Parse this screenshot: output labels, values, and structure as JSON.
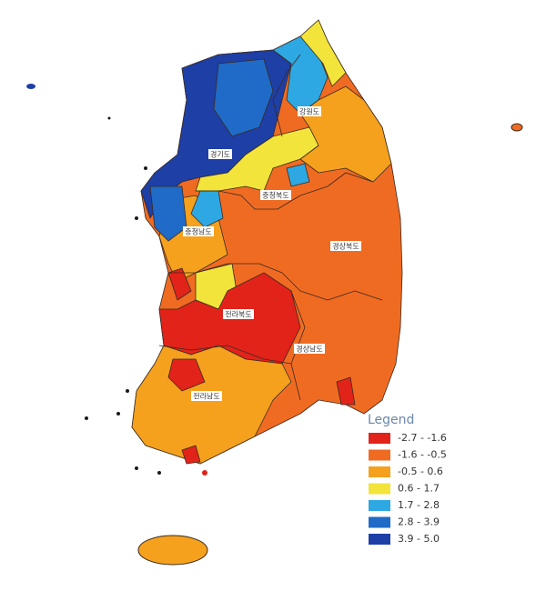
{
  "legend": {
    "title": "Legend",
    "items": [
      {
        "label": "-2.7 - -1.6",
        "color": "#e2231a"
      },
      {
        "label": "-1.6 - -0.5",
        "color": "#f06b22"
      },
      {
        "label": "-0.5 - 0.6",
        "color": "#f5a11d"
      },
      {
        "label": "0.6 - 1.7",
        "color": "#f2e43a"
      },
      {
        "label": "1.7 - 2.8",
        "color": "#2ea8e2"
      },
      {
        "label": "2.8 - 3.9",
        "color": "#1f6bc7"
      },
      {
        "label": "3.9 - 5.0",
        "color": "#1d3fa6"
      }
    ]
  },
  "regions": [
    "강원도",
    "경기도",
    "충청북도",
    "충청남도",
    "경상북도",
    "전라북도",
    "경상남도",
    "전라남도"
  ]
}
